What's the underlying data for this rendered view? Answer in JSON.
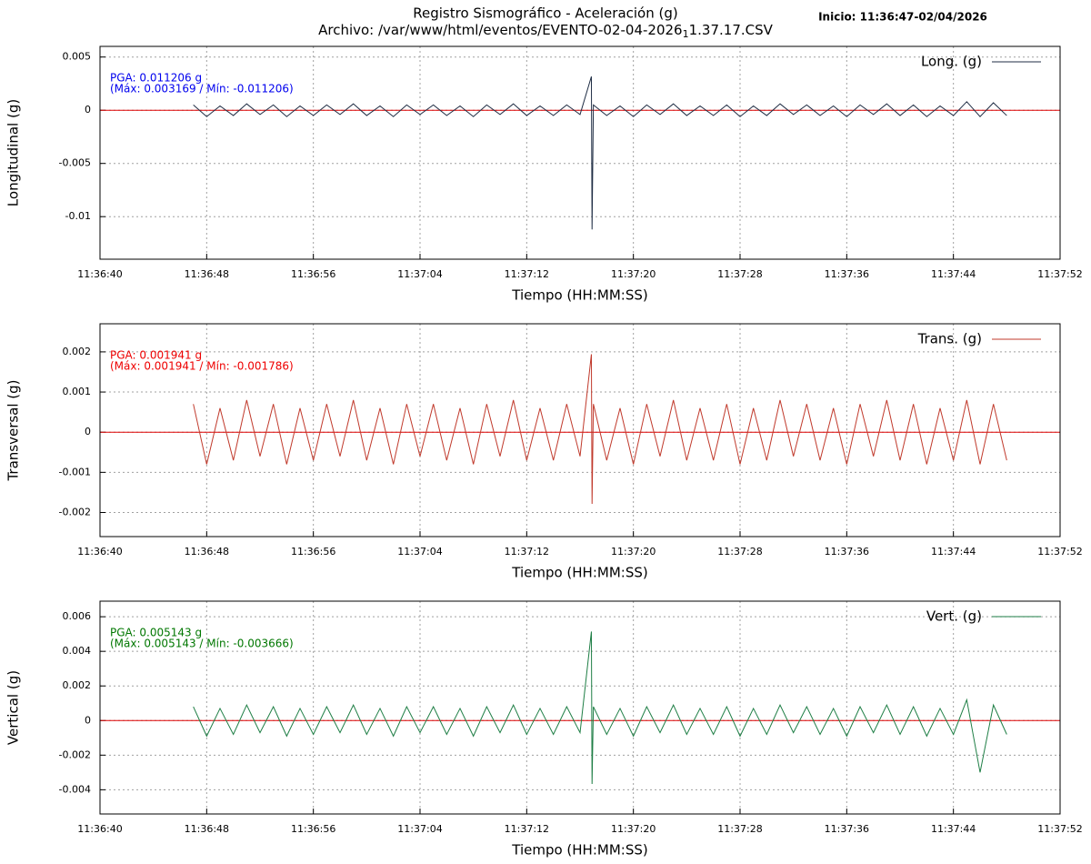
{
  "header": {
    "title": "Registro Sismográfico - Aceleración (g)",
    "subtitle": {
      "before": "Archivo: /var/www/html/eventos/EVENTO-02-04-2026",
      "sub": "1",
      "after": "1.37.17.CSV"
    },
    "start": "Inicio: 11:36:47-02/04/2026"
  },
  "chart_data": [
    {
      "type": "line",
      "ylabel": "Longitudinal (g)",
      "xlabel": "Tiempo (HH:MM:SS)",
      "x": [
        7,
        8,
        9,
        10,
        11,
        12,
        13,
        14,
        15,
        16,
        17,
        18,
        19,
        20,
        21,
        22,
        23,
        24,
        25,
        26,
        27,
        28,
        29,
        30,
        31,
        32,
        33,
        34,
        35,
        36,
        36.85,
        36.9,
        37,
        38,
        39,
        40,
        41,
        42,
        43,
        44,
        45,
        46,
        47,
        48,
        49,
        50,
        51,
        52,
        53,
        54,
        55,
        56,
        57,
        58,
        59,
        60,
        61,
        62,
        63,
        64,
        65,
        66,
        67,
        68
      ],
      "xlim": [
        0,
        72
      ],
      "xticks": [
        {
          "value": 0,
          "label": "11:36:40"
        },
        {
          "value": 8,
          "label": "11:36:48"
        },
        {
          "value": 16,
          "label": "11:36:56"
        },
        {
          "value": 24,
          "label": "11:37:04"
        },
        {
          "value": 32,
          "label": "11:37:12"
        },
        {
          "value": 40,
          "label": "11:37:20"
        },
        {
          "value": 48,
          "label": "11:37:28"
        },
        {
          "value": 56,
          "label": "11:37:36"
        },
        {
          "value": 64,
          "label": "11:37:44"
        },
        {
          "value": 72,
          "label": "11:37:52"
        }
      ],
      "ylim": [
        -0.014,
        0.006
      ],
      "yticks": [
        -0.01,
        -0.005,
        0,
        0.005
      ],
      "grid": true,
      "zero_line_color": "#dd0000",
      "legend": "top-right",
      "series": [
        {
          "name": "Long. (g)",
          "color": "#1f2d44",
          "values": [
            0.0005,
            -0.0006,
            0.0004,
            -0.0005,
            0.0006,
            -0.0004,
            0.0005,
            -0.0006,
            0.0004,
            -0.0005,
            0.0005,
            -0.0004,
            0.0006,
            -0.0005,
            0.0004,
            -0.0006,
            0.0005,
            -0.0004,
            0.0005,
            -0.0005,
            0.0004,
            -0.0006,
            0.0005,
            -0.0004,
            0.0006,
            -0.0005,
            0.0004,
            -0.0005,
            0.0005,
            -0.0004,
            0.003169,
            -0.011206,
            0.0005,
            -0.0005,
            0.0004,
            -0.0006,
            0.0005,
            -0.0004,
            0.0006,
            -0.0005,
            0.0004,
            -0.0005,
            0.0005,
            -0.0006,
            0.0004,
            -0.0005,
            0.0006,
            -0.0004,
            0.0005,
            -0.0005,
            0.0004,
            -0.0006,
            0.0005,
            -0.0004,
            0.0006,
            -0.0005,
            0.0005,
            -0.0006,
            0.0004,
            -0.0005,
            0.0008,
            -0.0006,
            0.0007,
            -0.0005
          ]
        }
      ],
      "annotations": [
        {
          "text": "PGA: 0.011206 g",
          "color": "#0000ee"
        },
        {
          "text": "(Máx: 0.003169 / Mín: -0.011206)",
          "color": "#0000ee"
        }
      ]
    },
    {
      "type": "line",
      "ylabel": "Transversal (g)",
      "xlabel": "Tiempo (HH:MM:SS)",
      "x": [
        7,
        8,
        9,
        10,
        11,
        12,
        13,
        14,
        15,
        16,
        17,
        18,
        19,
        20,
        21,
        22,
        23,
        24,
        25,
        26,
        27,
        28,
        29,
        30,
        31,
        32,
        33,
        34,
        35,
        36,
        36.85,
        36.9,
        37,
        38,
        39,
        40,
        41,
        42,
        43,
        44,
        45,
        46,
        47,
        48,
        49,
        50,
        51,
        52,
        53,
        54,
        55,
        56,
        57,
        58,
        59,
        60,
        61,
        62,
        63,
        64,
        65,
        66,
        67,
        68
      ],
      "xlim": [
        0,
        72
      ],
      "xticks": [
        {
          "value": 0,
          "label": "11:36:40"
        },
        {
          "value": 8,
          "label": "11:36:48"
        },
        {
          "value": 16,
          "label": "11:36:56"
        },
        {
          "value": 24,
          "label": "11:37:04"
        },
        {
          "value": 32,
          "label": "11:37:12"
        },
        {
          "value": 40,
          "label": "11:37:20"
        },
        {
          "value": 48,
          "label": "11:37:28"
        },
        {
          "value": 56,
          "label": "11:37:36"
        },
        {
          "value": 64,
          "label": "11:37:44"
        },
        {
          "value": 72,
          "label": "11:37:52"
        }
      ],
      "ylim": [
        -0.0026,
        0.0027
      ],
      "yticks": [
        -0.002,
        -0.001,
        0,
        0.001,
        0.002
      ],
      "grid": true,
      "zero_line_color": "#dd0000",
      "legend": "top-right",
      "series": [
        {
          "name": "Trans. (g)",
          "color": "#c0392b",
          "values": [
            0.0007,
            -0.0008,
            0.0006,
            -0.0007,
            0.0008,
            -0.0006,
            0.0007,
            -0.0008,
            0.0006,
            -0.0007,
            0.0007,
            -0.0006,
            0.0008,
            -0.0007,
            0.0006,
            -0.0008,
            0.0007,
            -0.0006,
            0.0007,
            -0.0007,
            0.0006,
            -0.0008,
            0.0007,
            -0.0006,
            0.0008,
            -0.0007,
            0.0006,
            -0.0007,
            0.0007,
            -0.0006,
            0.001941,
            -0.001786,
            0.0007,
            -0.0007,
            0.0006,
            -0.0008,
            0.0007,
            -0.0006,
            0.0008,
            -0.0007,
            0.0006,
            -0.0007,
            0.0007,
            -0.0008,
            0.0006,
            -0.0007,
            0.0008,
            -0.0006,
            0.0007,
            -0.0007,
            0.0006,
            -0.0008,
            0.0007,
            -0.0006,
            0.0008,
            -0.0007,
            0.0007,
            -0.0008,
            0.0006,
            -0.0007,
            0.0008,
            -0.0008,
            0.0007,
            -0.0007
          ]
        }
      ],
      "annotations": [
        {
          "text": "PGA: 0.001941 g",
          "color": "#ee0000"
        },
        {
          "text": "(Máx: 0.001941 / Mín: -0.001786)",
          "color": "#ee0000"
        }
      ]
    },
    {
      "type": "line",
      "ylabel": "Vertical (g)",
      "xlabel": "Tiempo (HH:MM:SS)",
      "x": [
        7,
        8,
        9,
        10,
        11,
        12,
        13,
        14,
        15,
        16,
        17,
        18,
        19,
        20,
        21,
        22,
        23,
        24,
        25,
        26,
        27,
        28,
        29,
        30,
        31,
        32,
        33,
        34,
        35,
        36,
        36.85,
        36.9,
        37,
        38,
        39,
        40,
        41,
        42,
        43,
        44,
        45,
        46,
        47,
        48,
        49,
        50,
        51,
        52,
        53,
        54,
        55,
        56,
        57,
        58,
        59,
        60,
        61,
        62,
        63,
        64,
        65,
        66,
        67,
        68
      ],
      "xlim": [
        0,
        72
      ],
      "xticks": [
        {
          "value": 0,
          "label": "11:36:40"
        },
        {
          "value": 8,
          "label": "11:36:48"
        },
        {
          "value": 16,
          "label": "11:36:56"
        },
        {
          "value": 24,
          "label": "11:37:04"
        },
        {
          "value": 32,
          "label": "11:37:12"
        },
        {
          "value": 40,
          "label": "11:37:20"
        },
        {
          "value": 48,
          "label": "11:37:28"
        },
        {
          "value": 56,
          "label": "11:37:36"
        },
        {
          "value": 64,
          "label": "11:37:44"
        },
        {
          "value": 72,
          "label": "11:37:52"
        }
      ],
      "ylim": [
        -0.0054,
        0.0069
      ],
      "yticks": [
        -0.004,
        -0.002,
        0,
        0.002,
        0.004,
        0.006
      ],
      "grid": true,
      "zero_line_color": "#dd0000",
      "legend": "top-right",
      "series": [
        {
          "name": "Vert. (g)",
          "color": "#1e7e45",
          "values": [
            0.0008,
            -0.0009,
            0.0007,
            -0.0008,
            0.0009,
            -0.0007,
            0.0008,
            -0.0009,
            0.0007,
            -0.0008,
            0.0008,
            -0.0007,
            0.0009,
            -0.0008,
            0.0007,
            -0.0009,
            0.0008,
            -0.0007,
            0.0008,
            -0.0008,
            0.0007,
            -0.0009,
            0.0008,
            -0.0007,
            0.0009,
            -0.0008,
            0.0007,
            -0.0008,
            0.0008,
            -0.0007,
            0.005143,
            -0.003666,
            0.0008,
            -0.0008,
            0.0007,
            -0.0009,
            0.0008,
            -0.0007,
            0.0009,
            -0.0008,
            0.0007,
            -0.0008,
            0.0008,
            -0.0009,
            0.0007,
            -0.0008,
            0.0009,
            -0.0007,
            0.0008,
            -0.0008,
            0.0007,
            -0.0009,
            0.0008,
            -0.0007,
            0.0009,
            -0.0008,
            0.0008,
            -0.0009,
            0.0007,
            -0.0008,
            0.0012,
            -0.003,
            0.0009,
            -0.0008
          ]
        }
      ],
      "annotations": [
        {
          "text": "PGA: 0.005143 g",
          "color": "#007700"
        },
        {
          "text": "(Máx: 0.005143 / Mín: -0.003666)",
          "color": "#007700"
        }
      ]
    }
  ]
}
